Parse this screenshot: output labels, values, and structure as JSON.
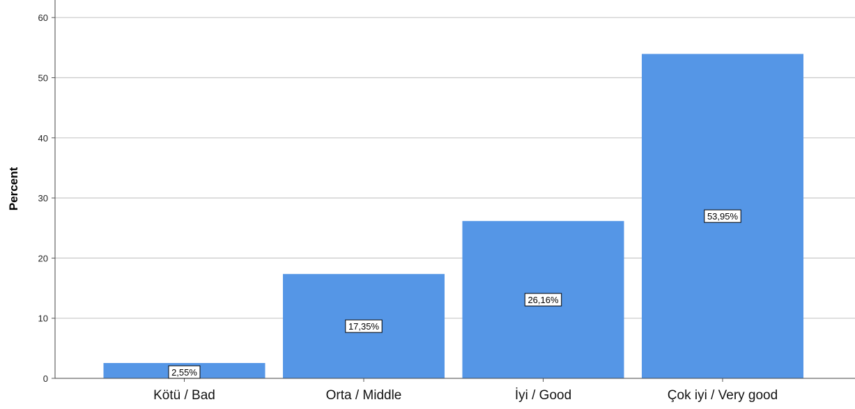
{
  "chart_data": {
    "type": "bar",
    "title": "",
    "xlabel": "",
    "ylabel": "Percent",
    "ylim": [
      0,
      62
    ],
    "yticks": [
      0,
      10,
      20,
      30,
      40,
      50,
      60
    ],
    "grid": true,
    "categories": [
      "Kötü / Bad",
      "Orta / Middle",
      "İyi / Good",
      "Çok iyi / Very good"
    ],
    "values": [
      2.55,
      17.35,
      26.16,
      53.95
    ],
    "data_labels": [
      "2,55%",
      "17,35%",
      "26,16%",
      "53,95%"
    ],
    "bar_color": "#5596e6",
    "gridline_color": "#c8c8c8"
  }
}
